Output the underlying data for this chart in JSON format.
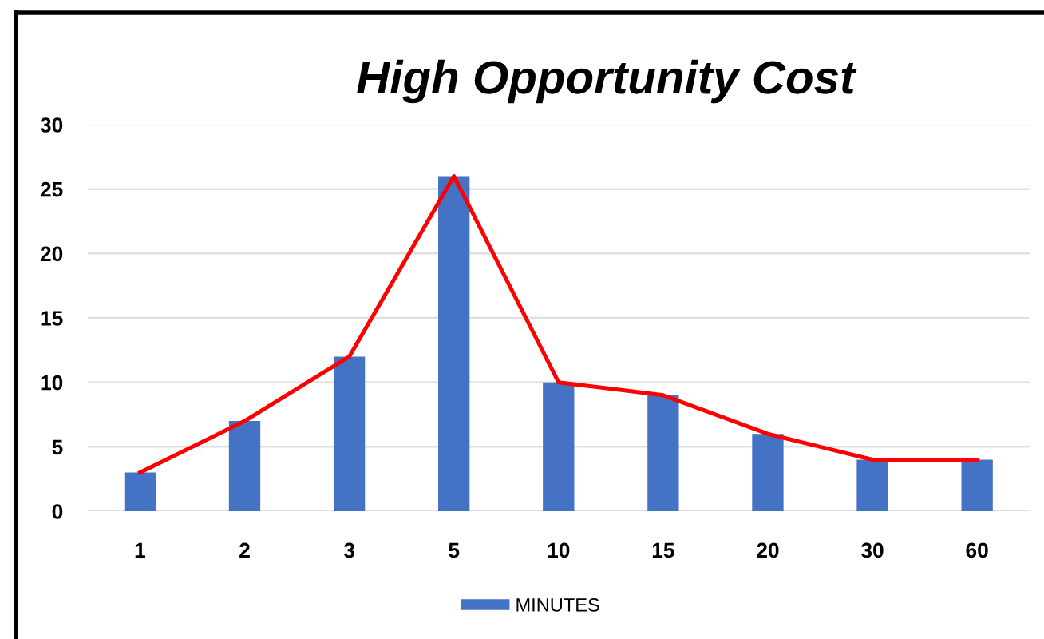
{
  "chart_data": {
    "type": "bar",
    "title": "High Opportunity Cost",
    "categories": [
      "1",
      "2",
      "3",
      "5",
      "10",
      "15",
      "20",
      "30",
      "60"
    ],
    "series": [
      {
        "name": "MINUTES",
        "color": "#4472c4",
        "values": [
          3,
          7,
          12,
          26,
          10,
          9,
          6,
          4,
          4
        ]
      },
      {
        "type": "line",
        "color": "#ff0000",
        "values": [
          3,
          7,
          12,
          26,
          10,
          9,
          6,
          4,
          4
        ]
      }
    ],
    "ylim": [
      0,
      30
    ],
    "yticks": [
      0,
      5,
      10,
      15,
      20,
      25,
      30
    ],
    "grid": "y",
    "legend": "bottom"
  }
}
